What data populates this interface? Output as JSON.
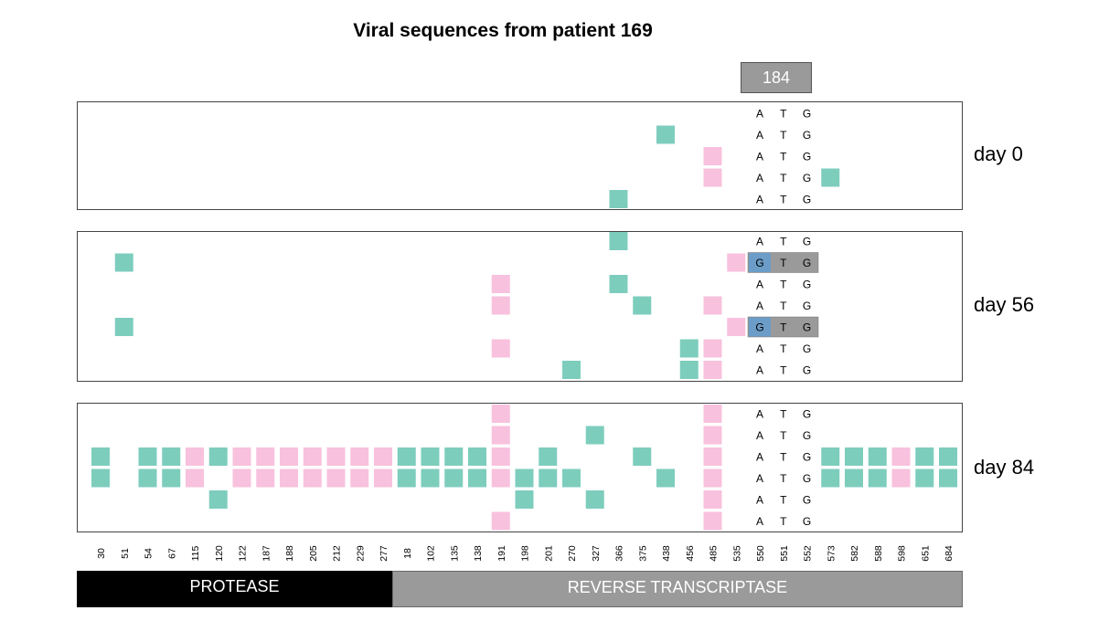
{
  "chart_data": {
    "type": "heatmap",
    "title": "Viral sequences from patient 169",
    "highlight_codon": "184",
    "columns": [
      "30",
      "51",
      "54",
      "67",
      "115",
      "120",
      "122",
      "187",
      "188",
      "205",
      "212",
      "229",
      "277",
      "18",
      "102",
      "135",
      "138",
      "191",
      "198",
      "201",
      "270",
      "327",
      "366",
      "375",
      "438",
      "456",
      "485",
      "535",
      "550",
      "551",
      "552",
      "573",
      "582",
      "588",
      "598",
      "651",
      "684"
    ],
    "regions": [
      {
        "label": "PROTEASE",
        "columns": [
          "30",
          "51",
          "54",
          "67",
          "115",
          "120",
          "122",
          "187",
          "188",
          "205",
          "212",
          "229",
          "277"
        ]
      },
      {
        "label": "REVERSE TRANSCRIPTASE",
        "columns": [
          "18",
          "102",
          "135",
          "138",
          "191",
          "198",
          "201",
          "270",
          "327",
          "366",
          "375",
          "438",
          "456",
          "485",
          "535",
          "550",
          "551",
          "552",
          "573",
          "582",
          "588",
          "598",
          "651",
          "684"
        ]
      }
    ],
    "codon_columns": [
      "550",
      "551",
      "552"
    ],
    "legend_colors": {
      "teal": "#7dcdbd",
      "pink": "#f8c1de",
      "blue": "#6b9dc8",
      "gray": "#9a9a9a"
    },
    "panels": [
      {
        "label": "day 0",
        "rows": [
          {
            "codon": [
              "A",
              "T",
              "G"
            ],
            "resistant": false,
            "teal": [],
            "pink": []
          },
          {
            "codon": [
              "A",
              "T",
              "G"
            ],
            "resistant": false,
            "teal": [
              "438"
            ],
            "pink": []
          },
          {
            "codon": [
              "A",
              "T",
              "G"
            ],
            "resistant": false,
            "teal": [],
            "pink": [
              "485"
            ]
          },
          {
            "codon": [
              "A",
              "T",
              "G"
            ],
            "resistant": false,
            "teal": [
              "573"
            ],
            "pink": [
              "485"
            ]
          },
          {
            "codon": [
              "A",
              "T",
              "G"
            ],
            "resistant": false,
            "teal": [
              "366"
            ],
            "pink": []
          }
        ]
      },
      {
        "label": "day 56",
        "rows": [
          {
            "codon": [
              "A",
              "T",
              "G"
            ],
            "resistant": false,
            "teal": [
              "366"
            ],
            "pink": []
          },
          {
            "codon": [
              "G",
              "T",
              "G"
            ],
            "resistant": true,
            "teal": [
              "51"
            ],
            "pink": [
              "535"
            ]
          },
          {
            "codon": [
              "A",
              "T",
              "G"
            ],
            "resistant": false,
            "teal": [
              "366"
            ],
            "pink": [
              "191"
            ]
          },
          {
            "codon": [
              "A",
              "T",
              "G"
            ],
            "resistant": false,
            "teal": [
              "375"
            ],
            "pink": [
              "191",
              "485"
            ]
          },
          {
            "codon": [
              "G",
              "T",
              "G"
            ],
            "resistant": true,
            "teal": [
              "51"
            ],
            "pink": [
              "535"
            ]
          },
          {
            "codon": [
              "A",
              "T",
              "G"
            ],
            "resistant": false,
            "teal": [
              "456"
            ],
            "pink": [
              "191",
              "485"
            ]
          },
          {
            "codon": [
              "A",
              "T",
              "G"
            ],
            "resistant": false,
            "teal": [
              "270",
              "456"
            ],
            "pink": [
              "485"
            ]
          }
        ]
      },
      {
        "label": "day 84",
        "rows": [
          {
            "codon": [
              "A",
              "T",
              "G"
            ],
            "resistant": false,
            "teal": [],
            "pink": [
              "191",
              "485"
            ]
          },
          {
            "codon": [
              "A",
              "T",
              "G"
            ],
            "resistant": false,
            "teal": [
              "327"
            ],
            "pink": [
              "191",
              "485"
            ]
          },
          {
            "codon": [
              "A",
              "T",
              "G"
            ],
            "resistant": false,
            "teal": [
              "30",
              "54",
              "67",
              "120",
              "18",
              "102",
              "135",
              "138",
              "201",
              "375",
              "573",
              "582",
              "588",
              "651",
              "684"
            ],
            "pink": [
              "115",
              "122",
              "187",
              "188",
              "205",
              "212",
              "229",
              "277",
              "191",
              "485",
              "598"
            ]
          },
          {
            "codon": [
              "A",
              "T",
              "G"
            ],
            "resistant": false,
            "teal": [
              "30",
              "54",
              "67",
              "18",
              "102",
              "135",
              "138",
              "198",
              "201",
              "270",
              "438",
              "573",
              "582",
              "588",
              "651",
              "684"
            ],
            "pink": [
              "115",
              "122",
              "187",
              "188",
              "205",
              "212",
              "229",
              "277",
              "191",
              "485",
              "598"
            ]
          },
          {
            "codon": [
              "A",
              "T",
              "G"
            ],
            "resistant": false,
            "teal": [
              "120",
              "198",
              "327"
            ],
            "pink": [
              "485"
            ]
          },
          {
            "codon": [
              "A",
              "T",
              "G"
            ],
            "resistant": false,
            "teal": [],
            "pink": [
              "191",
              "485"
            ]
          }
        ]
      }
    ]
  }
}
